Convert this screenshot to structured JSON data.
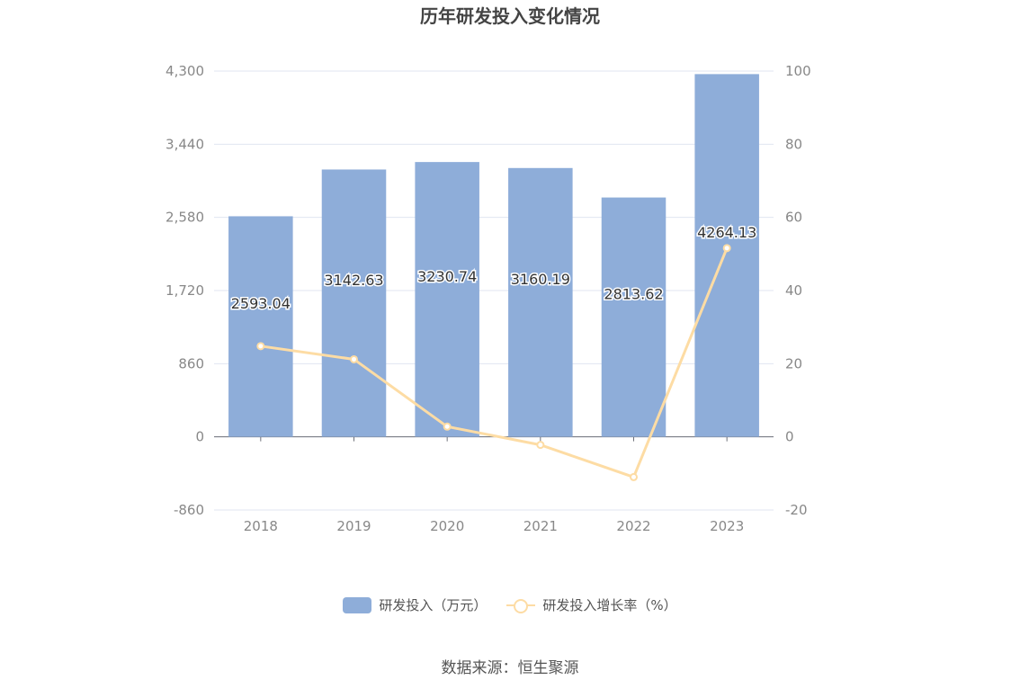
{
  "chart_data": {
    "title": "历年研发投入变化情况",
    "type": "bar+line",
    "categories": [
      "2018",
      "2019",
      "2020",
      "2021",
      "2022",
      "2023"
    ],
    "series": [
      {
        "name": "研发投入（万元）",
        "type": "bar",
        "axis": "left",
        "color": "#8eadd9",
        "values": [
          2593.04,
          3142.63,
          3230.74,
          3160.19,
          2813.62,
          4264.13
        ],
        "data_labels": [
          "2593.04",
          "3142.63",
          "3230.74",
          "3160.19",
          "2813.62",
          "4264.13"
        ]
      },
      {
        "name": "研发投入增长率（%）",
        "type": "line",
        "axis": "right",
        "color": "#fddca4",
        "values": [
          24.8,
          21.2,
          2.8,
          -2.2,
          -11.0,
          51.6
        ]
      }
    ],
    "y_left": {
      "ylim": [
        -860,
        4300
      ],
      "ticks": [
        "-860",
        "0",
        "860",
        "1,720",
        "2,580",
        "3,440",
        "4,300"
      ]
    },
    "y_right": {
      "ylim": [
        -20,
        100
      ],
      "ticks": [
        "-20",
        "0",
        "20",
        "40",
        "60",
        "80",
        "100"
      ]
    },
    "grid": true,
    "legend_position": "bottom"
  },
  "source": "数据来源：恒生聚源"
}
